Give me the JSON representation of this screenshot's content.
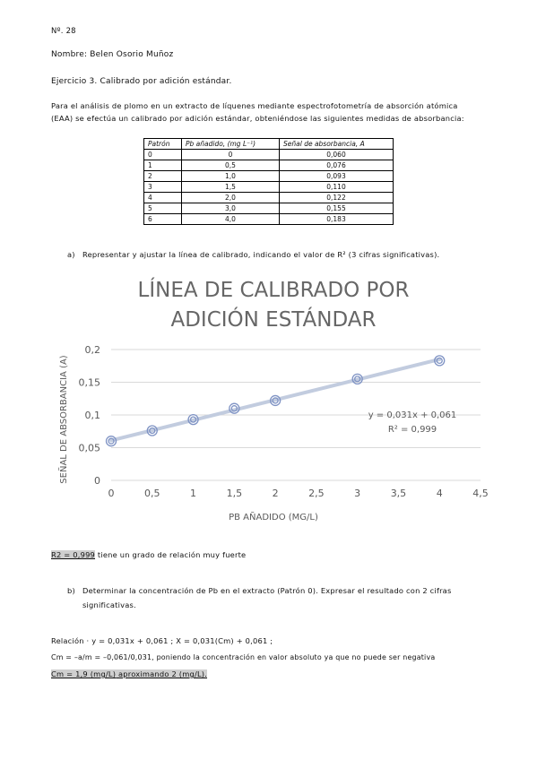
{
  "header": {
    "number": "Nº. 28",
    "name": "Nombre: Belen Osorio Muñoz"
  },
  "exercise": {
    "title": "Ejercicio 3. Calibrado por adición estándar.",
    "intro_line1": "Para el análisis de plomo en un extracto de líquenes mediante espectrofotometría de absorción atómica",
    "intro_line2": "(EAA) se efectúa un calibrado por adición estándar, obteniéndose las siguientes medidas de absorbancia:"
  },
  "table": {
    "headers": [
      "Patrón",
      "Pb añadido, (mg L⁻¹)",
      "Señal de absorbancia, A"
    ],
    "rows": [
      [
        "0",
        "0",
        "0,060"
      ],
      [
        "1",
        "0,5",
        "0,076"
      ],
      [
        "2",
        "1,0",
        "0,093"
      ],
      [
        "3",
        "1,5",
        "0,110"
      ],
      [
        "4",
        "2,0",
        "0,122"
      ],
      [
        "5",
        "3,0",
        "0,155"
      ],
      [
        "6",
        "4,0",
        "0,183"
      ]
    ]
  },
  "question_a": {
    "label": "a)",
    "text": "Representar y ajustar la línea de calibrado, indicando el valor de R² (3 cifras significativas)."
  },
  "chart_data": {
    "type": "scatter",
    "title_line1": "LÍNEA DE CALIBRADO POR",
    "title_line2": "ADICIÓN ESTÁNDAR",
    "xlabel": "PB AÑADIDO (MG/L)",
    "ylabel": "SEÑAL DE ABSORBANCIA (A)",
    "x": [
      0,
      0.5,
      1.0,
      1.5,
      2.0,
      3.0,
      4.0
    ],
    "y": [
      0.06,
      0.076,
      0.093,
      0.11,
      0.122,
      0.155,
      0.183
    ],
    "xlim": [
      0,
      4.5
    ],
    "ylim": [
      0,
      0.2
    ],
    "xticks": [
      "0",
      "0,5",
      "1",
      "1,5",
      "2",
      "2,5",
      "3",
      "3,5",
      "4",
      "4,5"
    ],
    "yticks": [
      "0",
      "0,05",
      "0,1",
      "0,15",
      "0,2"
    ],
    "trendline": {
      "slope": 0.031,
      "intercept": 0.061,
      "x_range": [
        0,
        4
      ]
    },
    "equation": "y = 0,031x + 0,061",
    "r2_label": "R² = 0,999",
    "grid": true,
    "colors": {
      "marker": "#7f93c4",
      "trend": "#c2ccdf",
      "title": "#666666",
      "axis_text": "#595959",
      "grid": "#d9d9d9"
    }
  },
  "r2_note": {
    "highlight": "R2 = 0,999",
    "text": " tiene un grado de relación muy fuerte"
  },
  "question_b": {
    "label": "b)",
    "line1": "Determinar la concentración de Pb en el extracto (Patrón 0). Expresar el resultado con 2 cifras",
    "line2": "significativas."
  },
  "answer": {
    "line1": "Relación · y = 0,031x + 0,061 ; X = 0,031(Cm) + 0,061 ;",
    "line2": "Cm = –a/m = –0,061/0,031, poniendo la concentración en valor absoluto ya que no puede ser negativa",
    "line3_highlight": "Cm = 1,9 (mg/L)",
    "line3_rest": " aproximando 2 (mg/L)."
  }
}
